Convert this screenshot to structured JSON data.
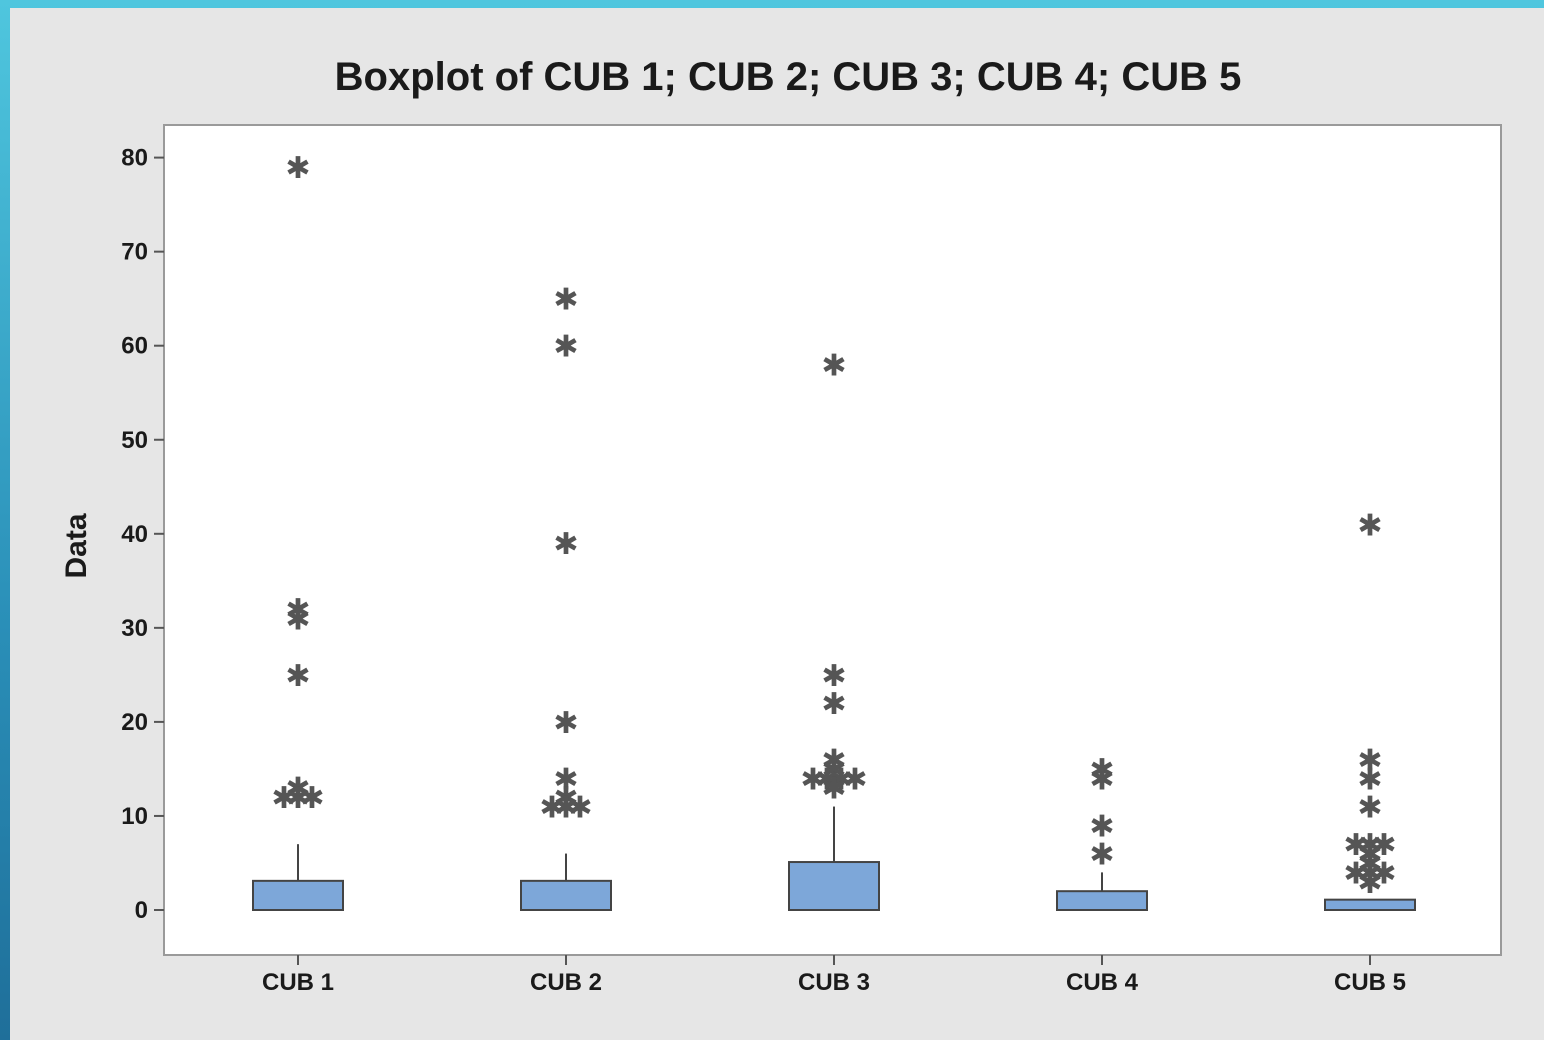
{
  "chart_data": {
    "type": "boxplot",
    "title": "Boxplot of CUB 1; CUB 2; CUB 3; CUB 4; CUB 5",
    "xlabel": "",
    "ylabel": "Data",
    "ylim": [
      -5,
      83
    ],
    "yticks": [
      "0",
      "10",
      "20",
      "30",
      "40",
      "50",
      "60",
      "70",
      "80"
    ],
    "categories": [
      "CUB 1",
      "CUB 2",
      "CUB 3",
      "CUB 4",
      "CUB 5"
    ],
    "box_color": "#7da7d9",
    "series": [
      {
        "q1": 0,
        "median": 0,
        "q3": 3.1,
        "whisker_low": 0,
        "whisker_high": 7,
        "outliers": [
          79,
          32,
          31,
          25,
          13,
          12,
          12,
          12
        ]
      },
      {
        "q1": 0,
        "median": 0,
        "q3": 3.1,
        "whisker_low": 0,
        "whisker_high": 6,
        "outliers": [
          65,
          60,
          39,
          20,
          14,
          12,
          11,
          11,
          11
        ]
      },
      {
        "q1": 0,
        "median": 0,
        "q3": 5.1,
        "whisker_low": 0,
        "whisker_high": 11,
        "outliers": [
          58,
          25,
          22,
          16,
          15,
          14,
          14,
          14,
          14,
          13
        ]
      },
      {
        "q1": 0,
        "median": 0,
        "q3": 2,
        "whisker_low": 0,
        "whisker_high": 4,
        "outliers": [
          15,
          14,
          9,
          6
        ]
      },
      {
        "q1": 0,
        "median": 0,
        "q3": 1.1,
        "whisker_low": 0,
        "whisker_high": 1.1,
        "outliers": [
          41,
          16,
          14,
          11,
          7,
          7,
          7,
          6,
          5,
          4,
          4,
          4,
          3
        ]
      }
    ]
  }
}
